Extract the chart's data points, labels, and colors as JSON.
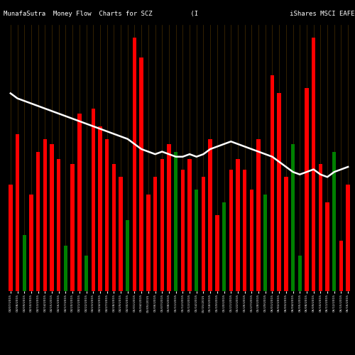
{
  "title": "MunafaSutra  Money Flow  Charts for SCZ          (I                        iShares MSCI EAFE Small-Cap ETF) M",
  "background_color": "#000000",
  "bar_colors": [
    "red",
    "red",
    "green",
    "red",
    "red",
    "red",
    "red",
    "red",
    "green",
    "red",
    "red",
    "green",
    "red",
    "red",
    "red",
    "red",
    "red",
    "green",
    "red",
    "red",
    "red",
    "red",
    "red",
    "red",
    "green",
    "red",
    "red",
    "green",
    "red",
    "red",
    "red",
    "green",
    "red",
    "red",
    "red",
    "red",
    "red",
    "green",
    "red",
    "red",
    "red",
    "green",
    "green",
    "red",
    "red",
    "red",
    "red",
    "green",
    "red",
    "red"
  ],
  "bar_heights": [
    0.42,
    0.62,
    0.22,
    0.38,
    0.55,
    0.6,
    0.58,
    0.52,
    0.18,
    0.5,
    0.7,
    0.14,
    0.72,
    0.65,
    0.6,
    0.5,
    0.45,
    0.28,
    1.0,
    0.92,
    0.38,
    0.45,
    0.52,
    0.58,
    0.55,
    0.48,
    0.52,
    0.4,
    0.45,
    0.6,
    0.3,
    0.35,
    0.48,
    0.52,
    0.48,
    0.4,
    0.6,
    0.38,
    0.85,
    0.78,
    0.45,
    0.58,
    0.14,
    0.8,
    1.0,
    0.5,
    0.35,
    0.55,
    0.2,
    0.42
  ],
  "line_values": [
    0.78,
    0.76,
    0.75,
    0.74,
    0.73,
    0.72,
    0.71,
    0.7,
    0.69,
    0.68,
    0.67,
    0.66,
    0.65,
    0.64,
    0.63,
    0.62,
    0.61,
    0.6,
    0.58,
    0.56,
    0.55,
    0.54,
    0.55,
    0.54,
    0.53,
    0.53,
    0.54,
    0.53,
    0.54,
    0.56,
    0.57,
    0.58,
    0.59,
    0.58,
    0.57,
    0.56,
    0.55,
    0.54,
    0.53,
    0.51,
    0.49,
    0.47,
    0.46,
    0.47,
    0.48,
    0.46,
    0.45,
    0.47,
    0.48,
    0.49
  ],
  "tick_labels": [
    "04/07/2015",
    "04/08/2015",
    "04/09/2015",
    "04/10/2015",
    "04/13/2015",
    "04/14/2015",
    "04/15/2015",
    "04/16/2015",
    "04/17/2015",
    "04/20/2015",
    "04/21/2015",
    "04/22/2015",
    "04/23/2015",
    "04/24/2015",
    "04/27/2015",
    "04/28/2015",
    "04/29/2015",
    "04/30/2015",
    "05/01/2015",
    "05/04/2015",
    "05/05/2015",
    "05/06/2015",
    "05/07/2015",
    "05/08/2015",
    "05/11/2015",
    "05/12/2015",
    "05/13/2015",
    "05/14/2015",
    "05/15/2015",
    "05/18/2015",
    "05/19/2015",
    "05/20/2015",
    "05/21/2015",
    "05/22/2015",
    "05/26/2015",
    "05/27/2015",
    "05/28/2015",
    "05/29/2015",
    "06/01/2015",
    "06/02/2015",
    "06/03/2015",
    "06/04/2015",
    "06/05/2015",
    "06/08/2015",
    "06/09/2015",
    "06/10/2015",
    "06/11/2015",
    "06/12/2015",
    "06/15/2015",
    "06/16/2015"
  ],
  "grid_color": "#5a3a00",
  "line_color": "#ffffff",
  "title_color": "#ffffff",
  "title_fontsize": 6.5,
  "ylim": [
    0,
    1.05
  ],
  "figsize": [
    5.0,
    5.0
  ],
  "dpi": 100
}
